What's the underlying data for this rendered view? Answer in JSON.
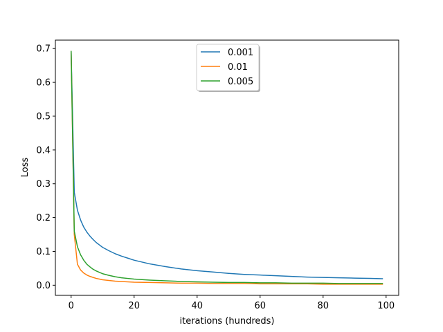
{
  "chart_data": {
    "type": "line",
    "title": "",
    "xlabel": "iterations (hundreds)",
    "ylabel": "Loss",
    "xlim": [
      -5,
      104
    ],
    "ylim": [
      -0.03,
      0.725
    ],
    "xticks": [
      0,
      20,
      40,
      60,
      80,
      100
    ],
    "yticks": [
      0.0,
      0.1,
      0.2,
      0.3,
      0.4,
      0.5,
      0.6,
      0.7
    ],
    "xtick_labels": [
      "0",
      "20",
      "40",
      "60",
      "80",
      "100"
    ],
    "ytick_labels": [
      "0.0",
      "0.1",
      "0.2",
      "0.3",
      "0.4",
      "0.5",
      "0.6",
      "0.7"
    ],
    "grid": false,
    "legend_position": "upper center",
    "x": [
      0,
      1,
      2,
      3,
      4,
      5,
      6,
      7,
      8,
      9,
      10,
      12,
      14,
      16,
      18,
      20,
      25,
      30,
      35,
      40,
      45,
      50,
      55,
      60,
      65,
      70,
      75,
      80,
      85,
      90,
      95,
      99
    ],
    "series": [
      {
        "name": "0.001",
        "color": "#1f77b4",
        "values": [
          0.693,
          0.275,
          0.222,
          0.193,
          0.172,
          0.157,
          0.145,
          0.135,
          0.126,
          0.119,
          0.112,
          0.102,
          0.093,
          0.086,
          0.08,
          0.074,
          0.063,
          0.055,
          0.048,
          0.043,
          0.039,
          0.035,
          0.032,
          0.03,
          0.028,
          0.026,
          0.024,
          0.023,
          0.022,
          0.021,
          0.02,
          0.019
        ]
      },
      {
        "name": "0.01",
        "color": "#ff7f0e",
        "values": [
          0.693,
          0.15,
          0.062,
          0.045,
          0.036,
          0.03,
          0.026,
          0.023,
          0.02,
          0.018,
          0.016,
          0.014,
          0.012,
          0.011,
          0.01,
          0.009,
          0.008,
          0.007,
          0.006,
          0.006,
          0.005,
          0.005,
          0.005,
          0.004,
          0.004,
          0.004,
          0.004,
          0.003,
          0.003,
          0.003,
          0.003,
          0.003
        ]
      },
      {
        "name": "0.005",
        "color": "#2ca02c",
        "values": [
          0.693,
          0.16,
          0.114,
          0.09,
          0.074,
          0.062,
          0.054,
          0.047,
          0.042,
          0.038,
          0.034,
          0.029,
          0.025,
          0.022,
          0.02,
          0.018,
          0.015,
          0.013,
          0.011,
          0.01,
          0.009,
          0.008,
          0.008,
          0.007,
          0.007,
          0.006,
          0.006,
          0.006,
          0.005,
          0.005,
          0.005,
          0.005
        ]
      }
    ]
  }
}
